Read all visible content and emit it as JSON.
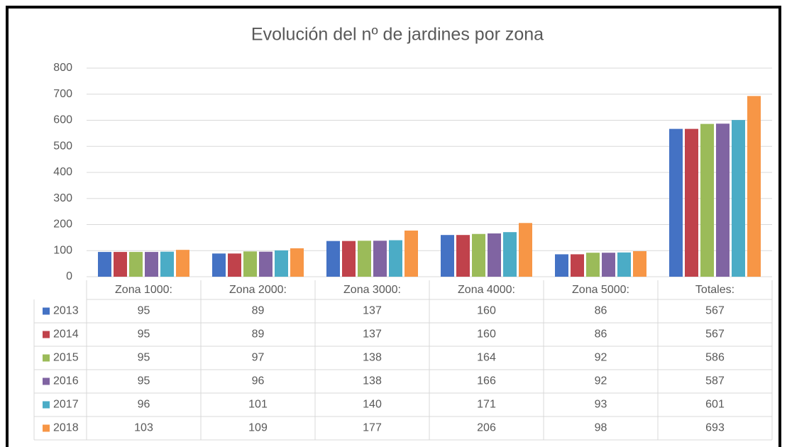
{
  "chart_data": {
    "type": "bar",
    "title": "Evolución del nº de jardines por zona",
    "categories": [
      "Zona 1000:",
      "Zona 2000:",
      "Zona 3000:",
      "Zona 4000:",
      "Zona 5000:",
      "Totales:"
    ],
    "series": [
      {
        "name": "2013",
        "color": "#4472c4",
        "values": [
          95,
          89,
          137,
          160,
          86,
          567
        ]
      },
      {
        "name": "2014",
        "color": "#c0424b",
        "values": [
          95,
          89,
          137,
          160,
          86,
          567
        ]
      },
      {
        "name": "2015",
        "color": "#9bbb59",
        "values": [
          95,
          97,
          138,
          164,
          92,
          586
        ]
      },
      {
        "name": "2016",
        "color": "#8064a2",
        "values": [
          95,
          96,
          138,
          166,
          92,
          587
        ]
      },
      {
        "name": "2017",
        "color": "#4bacc6",
        "values": [
          96,
          101,
          140,
          171,
          93,
          601
        ]
      },
      {
        "name": "2018",
        "color": "#f79646",
        "values": [
          103,
          109,
          177,
          206,
          98,
          693
        ]
      }
    ],
    "ylim": [
      0,
      800
    ],
    "yticks": [
      0,
      100,
      200,
      300,
      400,
      500,
      600,
      700,
      800
    ],
    "grid": true
  }
}
